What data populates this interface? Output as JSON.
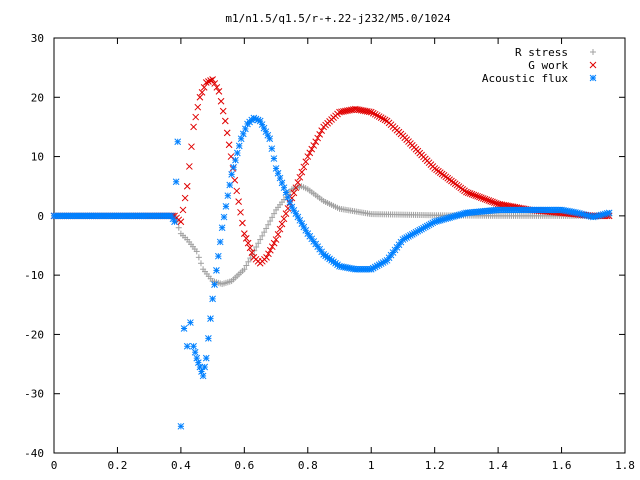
{
  "chart_data": {
    "type": "scatter",
    "title": "m1/n1.5/q1.5/r-+.22-j232/M5.0/1024",
    "xlabel": "",
    "ylabel": "",
    "xlim": [
      0,
      1.8
    ],
    "ylim": [
      -40,
      30
    ],
    "x_ticks": [
      "0",
      "0.2",
      "0.4",
      "0.6",
      "0.8",
      "1",
      "1.2",
      "1.4",
      "1.6",
      "1.8"
    ],
    "y_ticks": [
      "30",
      "20",
      "10",
      "0",
      "-10",
      "-20",
      "-30",
      "-40"
    ],
    "grid": false,
    "legend_position": "top-right",
    "series": [
      {
        "name": "R stress",
        "marker": "+",
        "color": "#a0a0a0",
        "x": [
          0.0,
          0.2,
          0.38,
          0.4,
          0.42,
          0.45,
          0.47,
          0.5,
          0.53,
          0.56,
          0.6,
          0.65,
          0.7,
          0.75,
          0.78,
          0.8,
          0.85,
          0.9,
          1.0,
          1.2,
          1.4,
          1.6,
          1.75
        ],
        "y": [
          0,
          0,
          0,
          -3,
          -4,
          -6,
          -9,
          -11,
          -11.5,
          -11,
          -9,
          -4,
          1,
          4.5,
          5,
          4.5,
          2.5,
          1.2,
          0.3,
          0.1,
          0,
          0,
          0
        ]
      },
      {
        "name": "G work",
        "marker": "x",
        "color": "#e00000",
        "x": [
          0.0,
          0.2,
          0.38,
          0.4,
          0.42,
          0.44,
          0.46,
          0.48,
          0.5,
          0.52,
          0.54,
          0.57,
          0.6,
          0.63,
          0.65,
          0.67,
          0.7,
          0.75,
          0.8,
          0.85,
          0.9,
          0.95,
          1.0,
          1.05,
          1.1,
          1.2,
          1.3,
          1.4,
          1.5,
          1.6,
          1.7,
          1.75
        ],
        "y": [
          0,
          0,
          0,
          -1,
          5,
          15,
          20,
          22.5,
          23,
          21,
          16,
          6,
          -3,
          -7,
          -8,
          -7,
          -4,
          3,
          10,
          15,
          17.5,
          18,
          17.5,
          16,
          13.5,
          8,
          4,
          2,
          1,
          0.5,
          0,
          0
        ]
      },
      {
        "name": "Acoustic flux",
        "marker": "*",
        "color": "#0080ff",
        "x": [
          0.0,
          0.2,
          0.37,
          0.38,
          0.39,
          0.4,
          0.41,
          0.42,
          0.43,
          0.44,
          0.45,
          0.46,
          0.47,
          0.48,
          0.5,
          0.53,
          0.56,
          0.59,
          0.61,
          0.63,
          0.65,
          0.68,
          0.7,
          0.75,
          0.8,
          0.85,
          0.9,
          0.95,
          1.0,
          1.05,
          1.1,
          1.2,
          1.3,
          1.4,
          1.5,
          1.6,
          1.65,
          1.7,
          1.75
        ],
        "y": [
          0,
          0,
          0,
          -1,
          12.5,
          -35.5,
          -19,
          -22,
          -18,
          -22,
          -24,
          -25.5,
          -27,
          -24,
          -14,
          -2,
          7,
          13,
          15.5,
          16.5,
          16,
          13,
          8,
          1.5,
          -3,
          -6.5,
          -8.5,
          -9,
          -9,
          -7.5,
          -4,
          -1,
          0.5,
          1,
          1,
          1,
          0.5,
          -0.2,
          0.5
        ]
      }
    ]
  }
}
